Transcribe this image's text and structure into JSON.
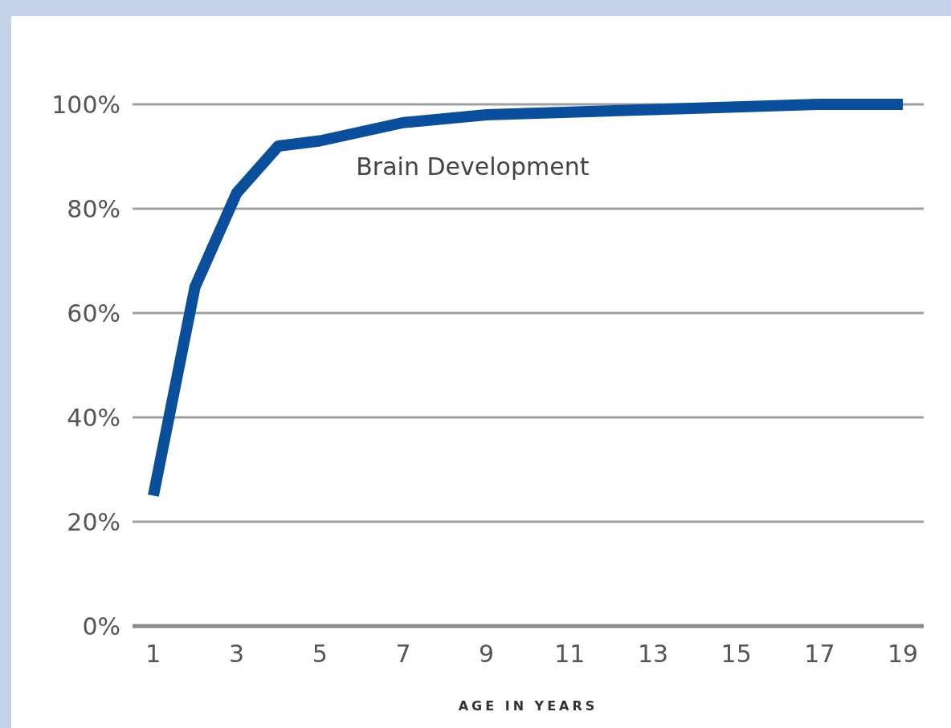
{
  "chart_data": {
    "type": "line",
    "xlabel": "AGE IN YEARS",
    "x": [
      1,
      2,
      3,
      4,
      5,
      7,
      9,
      11,
      13,
      15,
      17,
      19
    ],
    "series": [
      {
        "name": "Brain Development",
        "color": "#0b4f9c",
        "values": [
          25,
          65,
          83,
          92,
          93,
          96.5,
          98,
          98.5,
          99,
          99.5,
          100,
          100
        ]
      }
    ],
    "xlim": [
      0.5,
      19.5
    ],
    "xticks": [
      1,
      3,
      5,
      7,
      9,
      11,
      13,
      15,
      17,
      19
    ],
    "ylim": [
      0,
      100
    ],
    "yticks": [
      {
        "value": 0,
        "label": "0%"
      },
      {
        "value": 20,
        "label": "20%"
      },
      {
        "value": 40,
        "label": "40%"
      },
      {
        "value": 60,
        "label": "60%"
      },
      {
        "value": 80,
        "label": "80%"
      },
      {
        "value": 100,
        "label": "100%"
      }
    ],
    "grid": "y",
    "marker": "none",
    "line_style": "solid"
  }
}
